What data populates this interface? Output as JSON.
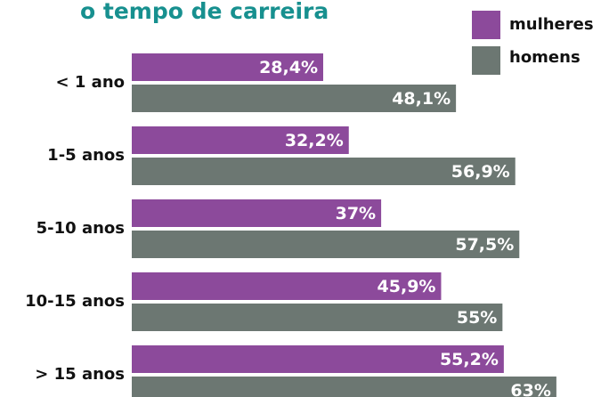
{
  "chart_data": {
    "type": "bar",
    "orientation": "horizontal",
    "title": "o tempo de carreira",
    "categories": [
      "< 1 ano",
      "1-5 anos",
      "5-10 anos",
      "10-15 anos",
      "> 15 anos"
    ],
    "series": [
      {
        "name": "mulheres",
        "color": "#8c4a9b",
        "values": [
          28.4,
          32.2,
          37,
          45.9,
          55.2
        ],
        "value_labels": [
          "28,4%",
          "32,2%",
          "37%",
          "45,9%",
          "55,2%"
        ]
      },
      {
        "name": "homens",
        "color": "#6c7772",
        "values": [
          48.1,
          56.9,
          57.5,
          55,
          63
        ],
        "value_labels": [
          "48,1%",
          "56,9%",
          "57,5%",
          "55%",
          "63%"
        ]
      }
    ],
    "legend": "top-right"
  }
}
